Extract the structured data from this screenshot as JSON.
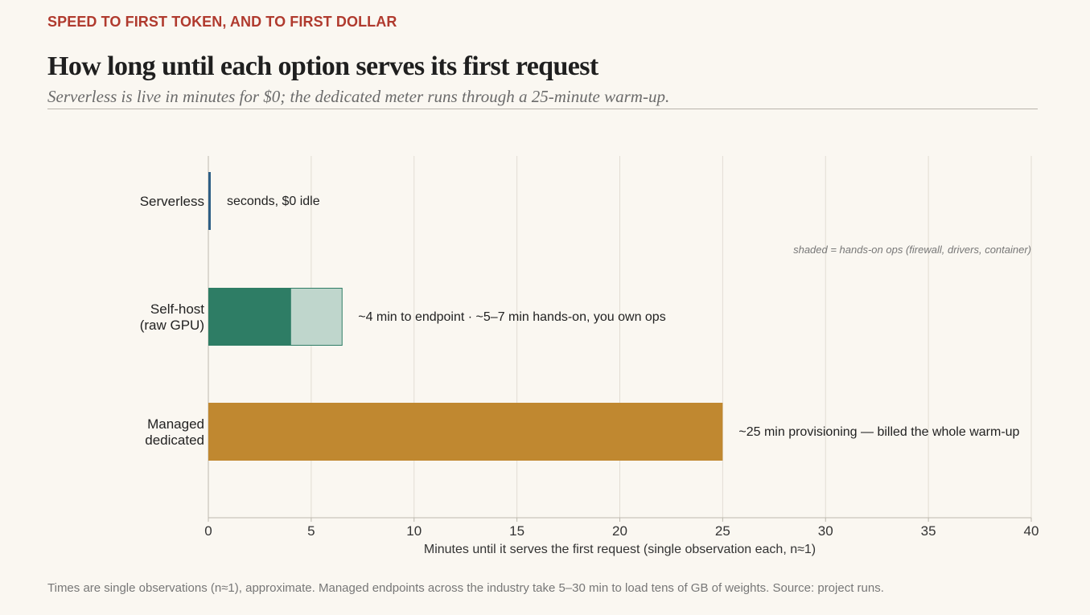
{
  "header": {
    "kicker": "SPEED TO FIRST TOKEN, AND TO FIRST DOLLAR",
    "title": "How long until each option serves its first request",
    "subtitle": "Serverless is live in minutes for $0; the dedicated meter runs through a 25-minute warm-up."
  },
  "footnote": "Times are single observations (n≈1), approximate. Managed endpoints across the industry take 5–30 min to load tens of GB of weights. Source: project runs.",
  "chart_data": {
    "type": "bar",
    "orientation": "horizontal",
    "xlabel": "Minutes until it serves the first request  (single observation each, n≈1)",
    "xlim": [
      0,
      40
    ],
    "xticks": [
      0,
      5,
      10,
      15,
      20,
      25,
      30,
      35,
      40
    ],
    "grid": true,
    "legend_note": "shaded = hands-on ops (firewall, drivers, container)",
    "categories": [
      {
        "label_lines": [
          "Serverless"
        ],
        "start": 0,
        "value": 0.1,
        "ops_value": 0,
        "color": "#2f5f86",
        "annotation": "seconds, $0 idle"
      },
      {
        "label_lines": [
          "Self-host",
          "(raw GPU)"
        ],
        "start": 0,
        "value": 4,
        "ops_value": 2.5,
        "color": "#2e7d65",
        "ops_color": "#bfd6cc",
        "annotation": "~4 min to endpoint · ~5–7 min hands-on, you own ops"
      },
      {
        "label_lines": [
          "Managed",
          "dedicated"
        ],
        "start": 0,
        "value": 25,
        "ops_value": 0,
        "color": "#c08830",
        "annotation": "~25 min provisioning — billed the whole warm-up"
      }
    ]
  }
}
